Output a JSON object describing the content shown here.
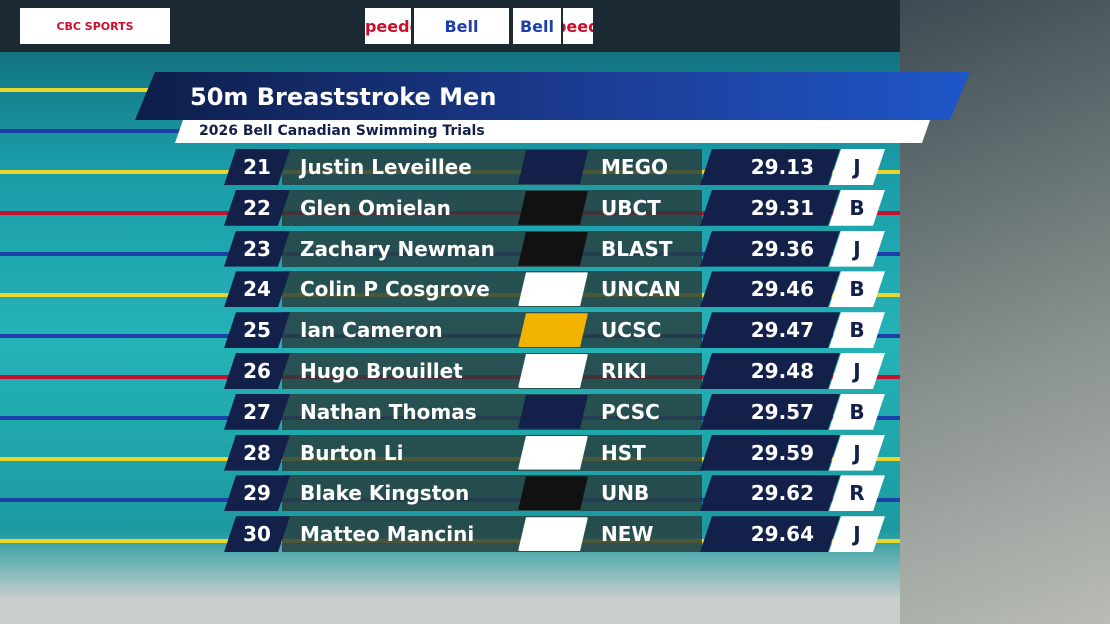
{
  "header": {
    "title": "50m Breaststroke Men",
    "subtitle": "2026 Bell Canadian Swimming Trials"
  },
  "banners": [
    "CBC SPORTS",
    "Bell",
    "speedo",
    "Bell",
    "speedo"
  ],
  "rows": [
    {
      "rank": "21",
      "name": "Justin Leveillee",
      "club": "MEGO",
      "time": "29.13",
      "code": "J"
    },
    {
      "rank": "22",
      "name": "Glen Omielan",
      "club": "UBCT",
      "time": "29.31",
      "code": "B"
    },
    {
      "rank": "23",
      "name": "Zachary Newman",
      "club": "BLAST",
      "time": "29.36",
      "code": "J"
    },
    {
      "rank": "24",
      "name": "Colin P Cosgrove",
      "club": "UNCAN",
      "time": "29.46",
      "code": "B"
    },
    {
      "rank": "25",
      "name": "Ian Cameron",
      "club": "UCSC",
      "time": "29.47",
      "code": "B"
    },
    {
      "rank": "26",
      "name": "Hugo Brouillet",
      "club": "RIKI",
      "time": "29.48",
      "code": "J"
    },
    {
      "rank": "27",
      "name": "Nathan Thomas",
      "club": "PCSC",
      "time": "29.57",
      "code": "B"
    },
    {
      "rank": "28",
      "name": "Burton Li",
      "club": "HST",
      "time": "29.59",
      "code": "J"
    },
    {
      "rank": "29",
      "name": "Blake Kingston",
      "club": "UNB",
      "time": "29.62",
      "code": "R"
    },
    {
      "rank": "30",
      "name": "Matteo Mancini",
      "club": "NEW",
      "time": "29.64",
      "code": "J"
    }
  ]
}
